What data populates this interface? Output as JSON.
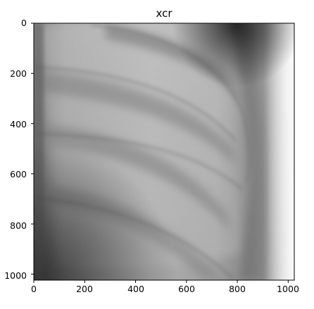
{
  "figure": {
    "title": "xcr",
    "image_description": "grayscale chest X-ray crop showing curved rib shadows",
    "image_size": [
      1024,
      1024
    ]
  },
  "axes": {
    "x_ticks": [
      "0",
      "200",
      "400",
      "600",
      "800",
      "1000"
    ],
    "y_ticks": [
      "0",
      "200",
      "400",
      "600",
      "800",
      "1000"
    ],
    "x_range": [
      0,
      1024
    ],
    "y_range": [
      1024,
      0
    ],
    "y_inverted": true
  },
  "colors": {
    "background": "#ffffff",
    "frame": "#000000"
  }
}
